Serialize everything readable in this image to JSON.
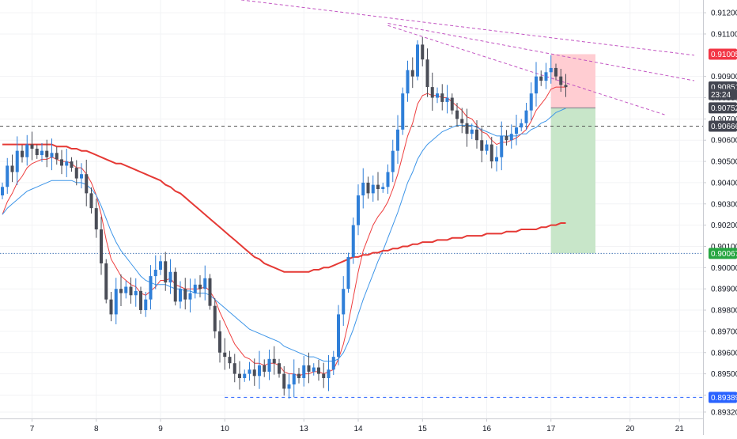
{
  "chart_data": {
    "type": "candlestick",
    "x_axis": {
      "ticks": [
        {
          "label": "7",
          "index": 6
        },
        {
          "label": "8",
          "index": 19
        },
        {
          "label": "9",
          "index": 32
        },
        {
          "label": "10",
          "index": 45
        },
        {
          "label": "13",
          "index": 61
        },
        {
          "label": "14",
          "index": 72
        },
        {
          "label": "15",
          "index": 85
        },
        {
          "label": "16",
          "index": 98
        },
        {
          "label": "17",
          "index": 111
        },
        {
          "label": "20",
          "index": 127
        },
        {
          "label": "21",
          "index": 137
        }
      ]
    },
    "y_axis": {
      "range": [
        0.8929,
        0.9126
      ],
      "ticks": [
        "0.91200",
        "0.91100",
        "0.90900",
        "0.90800",
        "0.90700",
        "0.90600",
        "0.90500",
        "0.90400",
        "0.90300",
        "0.90200",
        "0.90100",
        "0.90000",
        "0.89900",
        "0.89800",
        "0.89700",
        "0.89600",
        "0.89500",
        "0.89400",
        "0.89320"
      ]
    },
    "candles_close": [
      0.9038,
      0.9048,
      0.9045,
      0.9055,
      0.9052,
      0.9058,
      0.9056,
      0.9053,
      0.9055,
      0.9052,
      0.9054,
      0.9051,
      0.9048,
      0.905,
      0.9047,
      0.9042,
      0.9044,
      0.9035,
      0.9028,
      0.9018,
      0.9002,
      0.8985,
      0.8978,
      0.899,
      0.8988,
      0.8991,
      0.8987,
      0.8989,
      0.898,
      0.8985,
      0.8996,
      0.8999,
      0.9003,
      0.8993,
      0.8998,
      0.8984,
      0.899,
      0.8985,
      0.8988,
      0.8992,
      0.899,
      0.8995,
      0.8982,
      0.897,
      0.896,
      0.8958,
      0.8955,
      0.895,
      0.8948,
      0.895,
      0.8952,
      0.8949,
      0.8954,
      0.8951,
      0.8957,
      0.8955,
      0.895,
      0.8943,
      0.8945,
      0.895,
      0.8948,
      0.8954,
      0.8951,
      0.8953,
      0.895,
      0.8948,
      0.8952,
      0.8958,
      0.8978,
      0.899,
      0.9005,
      0.902,
      0.9034,
      0.904,
      0.9035,
      0.9039,
      0.9037,
      0.9038,
      0.9045,
      0.9055,
      0.9065,
      0.9082,
      0.9093,
      0.909,
      0.9105,
      0.9098,
      0.9085,
      0.908,
      0.9082,
      0.9078,
      0.908,
      0.9074,
      0.907,
      0.9068,
      0.9063,
      0.9065,
      0.906,
      0.9055,
      0.9058,
      0.905,
      0.9052,
      0.9062,
      0.906,
      0.9063,
      0.9066,
      0.9068,
      0.9074,
      0.9082,
      0.909,
      0.9088,
      0.9092,
      0.9094,
      0.909,
      0.9086,
      0.9085
    ],
    "series": [
      {
        "name": "",
        "type": "ma",
        "color": "#ee3e3e",
        "values": [
          0.9025,
          0.9031,
          0.9035,
          0.904,
          0.9043,
          0.9047,
          0.9049,
          0.905,
          0.9051,
          0.9051,
          0.9052,
          0.9051,
          0.905,
          0.905,
          0.9049,
          0.9047,
          0.9047,
          0.9044,
          0.904,
          0.9034,
          0.9025,
          0.9013,
          0.9004,
          0.9,
          0.8996,
          0.8994,
          0.8992,
          0.8991,
          0.8988,
          0.8987,
          0.8989,
          0.8991,
          0.8994,
          0.8994,
          0.8995,
          0.8992,
          0.8991,
          0.899,
          0.899,
          0.899,
          0.899,
          0.8991,
          0.8989,
          0.8985,
          0.8979,
          0.8974,
          0.8969,
          0.8964,
          0.8961,
          0.8958,
          0.8957,
          0.8955,
          0.8955,
          0.8954,
          0.8955,
          0.8955,
          0.8954,
          0.8951,
          0.895,
          0.895,
          0.8949,
          0.895,
          0.895,
          0.8951,
          0.8951,
          0.895,
          0.8951,
          0.8952,
          0.8957,
          0.8964,
          0.8974,
          0.8986,
          0.8998,
          0.9008,
          0.9014,
          0.902,
          0.9024,
          0.9027,
          0.9031,
          0.9037,
          0.9044,
          0.9053,
          0.9062,
          0.9068,
          0.9077,
          0.9081,
          0.9082,
          0.9081,
          0.9081,
          0.908,
          0.908,
          0.9078,
          0.9076,
          0.9074,
          0.9071,
          0.907,
          0.9067,
          0.9064,
          0.9063,
          0.906,
          0.9058,
          0.9059,
          0.9059,
          0.906,
          0.9061,
          0.9063,
          0.9065,
          0.9069,
          0.9074,
          0.9077,
          0.908,
          0.9084,
          0.9085,
          0.9085,
          0.9085
        ]
      },
      {
        "name": "",
        "type": "ma",
        "color": "#3d95e8",
        "values": [
          0.9025,
          0.9028,
          0.903,
          0.9032,
          0.9034,
          0.9036,
          0.9037,
          0.9038,
          0.9039,
          0.904,
          0.9041,
          0.9041,
          0.9041,
          0.9041,
          0.9041,
          0.904,
          0.904,
          0.9039,
          0.9037,
          0.9034,
          0.9029,
          0.9023,
          0.9017,
          0.9012,
          0.9008,
          0.9005,
          0.9002,
          0.8999,
          0.8996,
          0.8994,
          0.8993,
          0.8992,
          0.8992,
          0.8992,
          0.8991,
          0.899,
          0.899,
          0.8989,
          0.8989,
          0.8988,
          0.8988,
          0.8988,
          0.8987,
          0.8985,
          0.8983,
          0.8981,
          0.8979,
          0.8977,
          0.8975,
          0.8973,
          0.8971,
          0.897,
          0.8969,
          0.8968,
          0.8967,
          0.8966,
          0.8965,
          0.8963,
          0.8962,
          0.8961,
          0.896,
          0.8959,
          0.8958,
          0.8958,
          0.8957,
          0.8956,
          0.8956,
          0.8956,
          0.8957,
          0.896,
          0.8965,
          0.8971,
          0.8978,
          0.8985,
          0.8991,
          0.8997,
          0.9003,
          0.9008,
          0.9014,
          0.902,
          0.9026,
          0.9033,
          0.904,
          0.9045,
          0.9051,
          0.9055,
          0.9058,
          0.906,
          0.9062,
          0.9064,
          0.9065,
          0.9066,
          0.9067,
          0.9067,
          0.9067,
          0.9067,
          0.9066,
          0.9065,
          0.9064,
          0.9063,
          0.9062,
          0.9062,
          0.9062,
          0.9062,
          0.9062,
          0.9063,
          0.9063,
          0.9065,
          0.9066,
          0.9068,
          0.9069,
          0.9071,
          0.9073,
          0.9074,
          0.9075
        ]
      },
      {
        "name": "",
        "type": "ma",
        "color": "#e53935",
        "values": [
          0.9058,
          0.9058,
          0.9058,
          0.9058,
          0.9058,
          0.9058,
          0.9058,
          0.9058,
          0.9058,
          0.9058,
          0.9058,
          0.9057,
          0.9057,
          0.9057,
          0.9056,
          0.9056,
          0.9055,
          0.9055,
          0.9054,
          0.9053,
          0.9052,
          0.9051,
          0.905,
          0.9049,
          0.9049,
          0.9048,
          0.9047,
          0.9046,
          0.9045,
          0.9044,
          0.9043,
          0.9042,
          0.9041,
          0.9039,
          0.9038,
          0.9036,
          0.9035,
          0.9033,
          0.9031,
          0.9029,
          0.9027,
          0.9025,
          0.9023,
          0.9021,
          0.9019,
          0.9017,
          0.9015,
          0.9013,
          0.9011,
          0.9009,
          0.9007,
          0.9005,
          0.9004,
          0.9002,
          0.9001,
          0.9,
          0.8999,
          0.8998,
          0.8998,
          0.8998,
          0.8998,
          0.8998,
          0.8998,
          0.8999,
          0.8999,
          0.9,
          0.9,
          0.9001,
          0.9002,
          0.9003,
          0.9004,
          0.9005,
          0.9005,
          0.9006,
          0.9006,
          0.9007,
          0.9007,
          0.9008,
          0.9008,
          0.9009,
          0.9009,
          0.901,
          0.901,
          0.9011,
          0.9011,
          0.9012,
          0.9012,
          0.9012,
          0.9013,
          0.9013,
          0.9013,
          0.9014,
          0.9014,
          0.9014,
          0.9015,
          0.9015,
          0.9015,
          0.9015,
          0.9016,
          0.9016,
          0.9016,
          0.9016,
          0.9017,
          0.9017,
          0.9017,
          0.9018,
          0.9018,
          0.9018,
          0.9018,
          0.9019,
          0.9019,
          0.902,
          0.902,
          0.9021,
          0.9021
        ]
      }
    ],
    "horizontal_lines": [
      {
        "value": 0.90666,
        "style": "dashed",
        "color": "#555555"
      },
      {
        "value": 0.90067,
        "style": "dotted",
        "color": "#4a7ab8"
      },
      {
        "value": 0.89389,
        "style": "dashed",
        "color": "#2962ff",
        "start_index": 45
      }
    ],
    "trend_lines": [
      {
        "from": [
          45,
          0.9127
        ],
        "to": [
          140,
          0.91
        ],
        "color": "#c254c2"
      },
      {
        "from": [
          78,
          0.9115
        ],
        "to": [
          140,
          0.9088
        ],
        "color": "#c254c2"
      },
      {
        "from": [
          78,
          0.9114
        ],
        "to": [
          134,
          0.9072
        ],
        "color": "#c254c2"
      }
    ],
    "position": {
      "start_index": 111,
      "end_index": 120,
      "entry": 0.90752,
      "stop": 0.91005,
      "target": 0.90067,
      "stop_color": "#ffcdd2",
      "target_color": "#c8e6c9"
    },
    "price_labels": [
      {
        "text": "0.91005",
        "value": 0.91005,
        "bg": "#f23645",
        "fg": "#ffffff"
      },
      {
        "text": "0.90851",
        "value": 0.90851,
        "bg": "#434651",
        "fg": "#ffffff"
      },
      {
        "text": "23:24",
        "value": 0.90815,
        "bg": "#434651",
        "fg": "#ffffff"
      },
      {
        "text": "0.90752",
        "value": 0.90752,
        "bg": "#434651",
        "fg": "#ffffff"
      },
      {
        "text": "0.90666",
        "value": 0.90666,
        "bg": "#434651",
        "fg": "#ffffff"
      },
      {
        "text": "0.90067",
        "value": 0.90067,
        "bg": "#26a641",
        "fg": "#ffffff"
      },
      {
        "text": "0.89389",
        "value": 0.89389,
        "bg": "#2962ff",
        "fg": "#ffffff"
      }
    ],
    "colors": {
      "up": "#2f7fd8",
      "down": "#4a4d57",
      "grid": "#f2f3f5"
    }
  }
}
